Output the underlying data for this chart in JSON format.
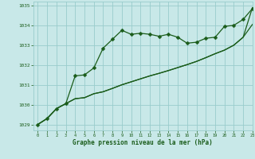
{
  "xlabel": "Graphe pression niveau de la mer (hPa)",
  "xlim": [
    -0.5,
    23
  ],
  "ylim": [
    1028.7,
    1035.2
  ],
  "yticks": [
    1029,
    1030,
    1031,
    1032,
    1033,
    1034,
    1035
  ],
  "xticks": [
    0,
    1,
    2,
    3,
    4,
    5,
    6,
    7,
    8,
    9,
    10,
    11,
    12,
    13,
    14,
    15,
    16,
    17,
    18,
    19,
    20,
    21,
    22,
    23
  ],
  "bg_color": "#c8e8e8",
  "grid_color": "#99cccc",
  "line_color": "#1a5c1a",
  "line1_y": [
    1029.0,
    1029.3,
    1029.8,
    1030.05,
    1031.45,
    1031.5,
    1031.85,
    1032.85,
    1033.3,
    1033.75,
    1033.55,
    1033.6,
    1033.55,
    1033.45,
    1033.55,
    1033.4,
    1033.1,
    1033.15,
    1033.35,
    1033.4,
    1033.95,
    1034.0,
    1034.3,
    1034.85
  ],
  "line2_y": [
    1029.0,
    1029.3,
    1029.8,
    1030.05,
    1030.3,
    1030.35,
    1030.55,
    1030.65,
    1030.82,
    1031.0,
    1031.15,
    1031.3,
    1031.45,
    1031.58,
    1031.72,
    1031.87,
    1032.02,
    1032.18,
    1032.37,
    1032.57,
    1032.75,
    1033.0,
    1033.4,
    1034.05
  ],
  "line3_y": [
    1029.0,
    1029.3,
    1029.8,
    1030.05,
    1030.3,
    1030.35,
    1030.55,
    1030.65,
    1030.82,
    1031.0,
    1031.15,
    1031.3,
    1031.45,
    1031.58,
    1031.72,
    1031.87,
    1032.02,
    1032.18,
    1032.37,
    1032.57,
    1032.75,
    1033.0,
    1033.4,
    1034.9
  ],
  "marker_size": 2.5,
  "line_width": 0.9
}
